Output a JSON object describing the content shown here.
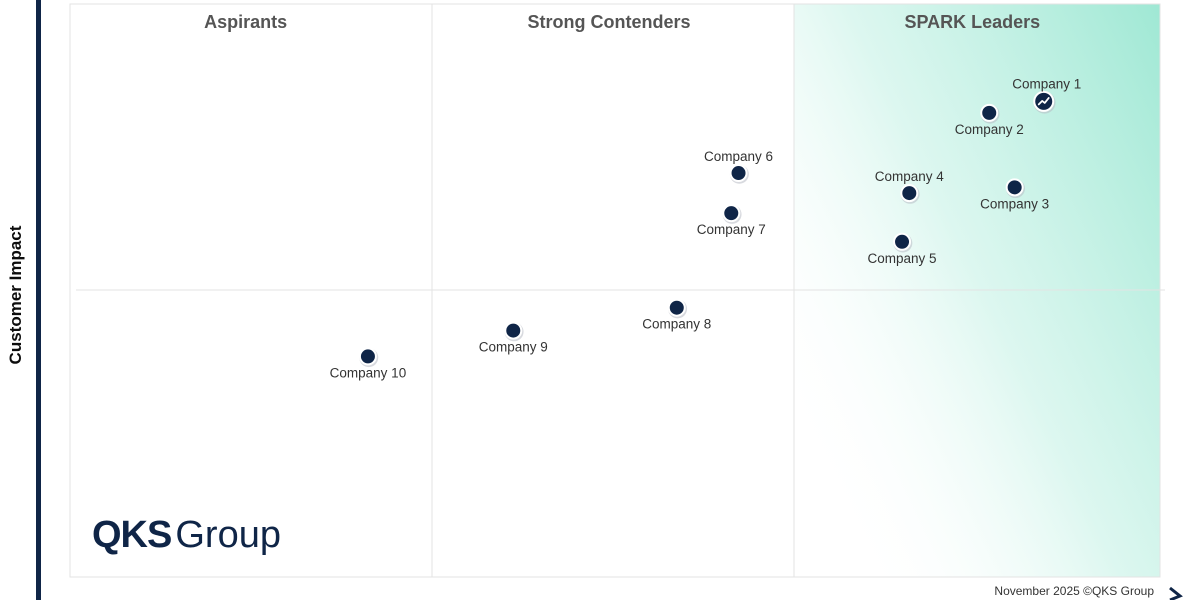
{
  "chart_data": {
    "type": "scatter",
    "ylabel": "Customer Impact",
    "xlim": [
      0,
      3
    ],
    "ylim": [
      0,
      2
    ],
    "grid": true,
    "quadrants": [
      {
        "label": "Aspirants"
      },
      {
        "label": "Strong Contenders"
      },
      {
        "label": "SPARK Leaders"
      }
    ],
    "points": [
      {
        "label": "Company 1",
        "x": 2.68,
        "y": 1.66,
        "featured": true,
        "label_pos": "above-right"
      },
      {
        "label": "Company 2",
        "x": 2.53,
        "y": 1.62,
        "featured": false,
        "label_pos": "below"
      },
      {
        "label": "Company 3",
        "x": 2.6,
        "y": 1.36,
        "featured": false,
        "label_pos": "below"
      },
      {
        "label": "Company 4",
        "x": 2.31,
        "y": 1.34,
        "featured": false,
        "label_pos": "above"
      },
      {
        "label": "Company 5",
        "x": 2.29,
        "y": 1.17,
        "featured": false,
        "label_pos": "below"
      },
      {
        "label": "Company 6",
        "x": 1.84,
        "y": 1.41,
        "featured": false,
        "label_pos": "above"
      },
      {
        "label": "Company 7",
        "x": 1.82,
        "y": 1.27,
        "featured": false,
        "label_pos": "below"
      },
      {
        "label": "Company 8",
        "x": 1.67,
        "y": 0.94,
        "featured": false,
        "label_pos": "below"
      },
      {
        "label": "Company 9",
        "x": 1.22,
        "y": 0.86,
        "featured": false,
        "label_pos": "below"
      },
      {
        "label": "Company 10",
        "x": 0.82,
        "y": 0.77,
        "featured": false,
        "label_pos": "below"
      }
    ]
  },
  "branding": {
    "logo_bold": "QKS",
    "logo_light": "Group",
    "footnote": "November 2025 ©QKS Group"
  },
  "colors": {
    "dot": "#0f2547",
    "axis": "#0f2547",
    "leaders_gradient": "#9fe8d4"
  }
}
